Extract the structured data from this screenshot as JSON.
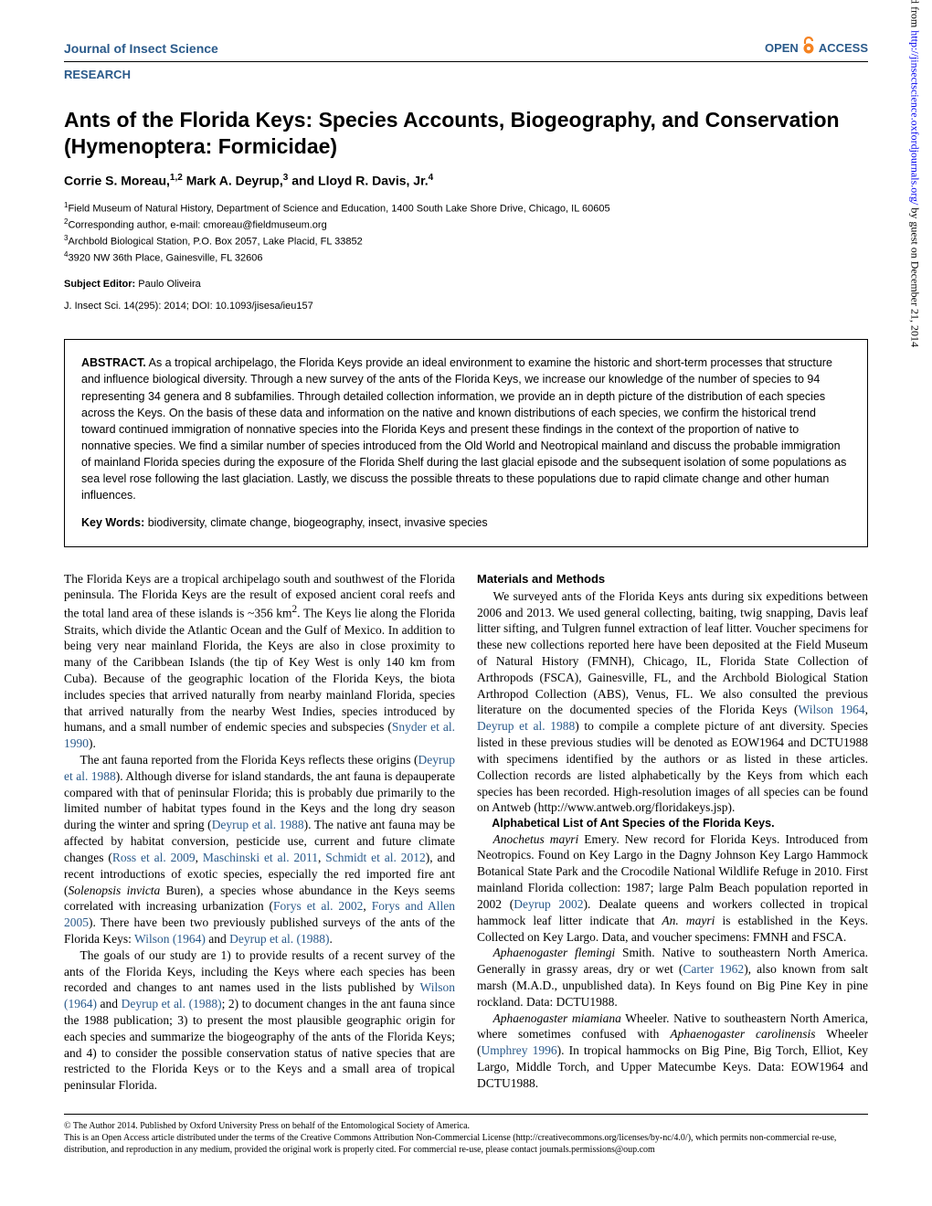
{
  "header": {
    "journal": "Journal of Insect Science",
    "open": "OPEN",
    "access": "ACCESS",
    "section": "RESEARCH"
  },
  "title": "Ants of the Florida Keys: Species Accounts, Biogeography, and Conservation (Hymenoptera: Formicidae)",
  "authors_html": "Corrie S. Moreau,<sup>1,2</sup> Mark A. Deyrup,<sup>3</sup> and Lloyd R. Davis, Jr.<sup>4</sup>",
  "affiliations": [
    "<sup>1</sup>Field Museum of Natural History, Department of Science and Education, 1400 South Lake Shore Drive, Chicago, IL 60605",
    "<sup>2</sup>Corresponding author, e-mail: cmoreau@fieldmuseum.org",
    "<sup>3</sup>Archbold Biological Station, P.O. Box 2057, Lake Placid, FL 33852",
    "<sup>4</sup>3920 NW 36th Place, Gainesville, FL 32606"
  ],
  "subject_editor_label": "Subject Editor:",
  "subject_editor": " Paulo Oliveira",
  "citation": "J. Insect Sci. 14(295): 2014; DOI: 10.1093/jisesa/ieu157",
  "abstract": {
    "label": "ABSTRACT.",
    "text": " As a tropical archipelago, the Florida Keys provide an ideal environment to examine the historic and short-term processes that structure and influence biological diversity. Through a new survey of the ants of the Florida Keys, we increase our knowledge of the number of species to 94 representing 34 genera and 8 subfamilies. Through detailed collection information, we provide an in depth picture of the distribution of each species across the Keys. On the basis of these data and information on the native and known distributions of each species, we confirm the historical trend toward continued immigration of nonnative species into the Florida Keys and present these findings in the context of the proportion of native to nonnative species. We find a similar number of species introduced from the Old World and Neotropical mainland and discuss the probable immigration of mainland Florida species during the exposure of the Florida Shelf during the last glacial episode and the subsequent isolation of some populations as sea level rose following the last glaciation. Lastly, we discuss the possible threats to these populations due to rapid climate change and other human influences."
  },
  "keywords": {
    "label": "Key Words:",
    "text": " biodiversity, climate change, biogeography, insect, invasive species"
  },
  "body": {
    "left": [
      "The Florida Keys are a tropical archipelago south and southwest of the Florida peninsula. The Florida Keys are the result of exposed ancient coral reefs and the total land area of these islands is ~356 km<sup>2</sup>. The Keys lie along the Florida Straits, which divide the Atlantic Ocean and the Gulf of Mexico. In addition to being very near mainland Florida, the Keys are also in close proximity to many of the Caribbean Islands (the tip of Key West is only 140 km from Cuba). Because of the geographic location of the Florida Keys, the biota includes species that arrived naturally from nearby mainland Florida, species that arrived naturally from the nearby West Indies, species introduced by humans, and a small number of endemic species and subspecies (<span class=\"link\">Snyder et al. 1990</span>).",
      "The ant fauna reported from the Florida Keys reflects these origins (<span class=\"link\">Deyrup et al. 1988</span>). Although diverse for island standards, the ant fauna is depauperate compared with that of peninsular Florida; this is probably due primarily to the limited number of habitat types found in the Keys and the long dry season during the winter and spring (<span class=\"link\">Deyrup et al. 1988</span>). The native ant fauna may be affected by habitat conversion, pesticide use, current and future climate changes (<span class=\"link\">Ross et al. 2009</span>, <span class=\"link\">Maschinski et al. 2011</span>, <span class=\"link\">Schmidt et al. 2012</span>), and recent introductions of exotic species, especially the red imported fire ant (<span class=\"italic\">Solenopsis invicta</span> Buren), a species whose abundance in the Keys seems correlated with increasing urbanization (<span class=\"link\">Forys et al. 2002</span>, <span class=\"link\">Forys and Allen 2005</span>). There have been two previously published surveys of the ants of the Florida Keys: <span class=\"link\">Wilson (1964)</span> and <span class=\"link\">Deyrup et al. (1988)</span>.",
      "The goals of our study are 1) to provide results of a recent survey of the ants of the Florida Keys, including the Keys where each species has been recorded and changes to ant names used in the lists published by <span class=\"link\">Wilson (1964)</span> and <span class=\"link\">Deyrup et al. (1988)</span>; 2) to document changes in the ant fauna since the 1988 publication; 3) to present the most plausible geographic origin for each species and summarize the biogeography of the ants of the Florida Keys; and 4) to consider the possible conservation status of native species that are restricted to the Florida Keys or to the Keys and a small area of tropical peninsular Florida."
    ],
    "right_head": "Materials and Methods",
    "right": [
      "We surveyed ants of the Florida Keys ants during six expeditions between 2006 and 2013. We used general collecting, baiting, twig snapping, Davis leaf litter sifting, and Tulgren funnel extraction of leaf litter. Voucher specimens for these new collections reported here have been deposited at the Field Museum of Natural History (FMNH), Chicago, IL, Florida State Collection of Arthropods (FSCA), Gainesville, FL, and the Archbold Biological Station Arthropod Collection (ABS), Venus, FL. We also consulted the previous literature on the documented species of the Florida Keys (<span class=\"link\">Wilson 1964</span>, <span class=\"link\">Deyrup et al. 1988</span>) to compile a complete picture of ant diversity. Species listed in these previous studies will be denoted as EOW1964 and DCTU1988 with specimens identified by the authors or as listed in these articles. Collection records are listed alphabetically by the Keys from which each species has been recorded. High-resolution images of all species can be found on Antweb (http://www.antweb.org/floridakeys.jsp).",
      "<span class=\"italic\">Anochetus mayri</span> Emery. New record for Florida Keys. Introduced from Neotropics. Found on Key Largo in the Dagny Johnson Key Largo Hammock Botanical State Park and the Crocodile National Wildlife Refuge in 2010. First mainland Florida collection: 1987; large Palm Beach population reported in 2002 (<span class=\"link\">Deyrup 2002</span>). Dealate queens and workers collected in tropical hammock leaf litter indicate that <span class=\"italic\">An. mayri</span> is established in the Keys. Collected on Key Largo. Data, and voucher specimens: FMNH and FSCA.",
      "<span class=\"italic\">Aphaenogaster flemingi</span> Smith. Native to southeastern North America. Generally in grassy areas, dry or wet (<span class=\"link\">Carter 1962</span>), also known from salt marsh (M.A.D., unpublished data). In Keys found on Big Pine Key in pine rockland. Data: DCTU1988.",
      "<span class=\"italic\">Aphaenogaster miamiana</span> Wheeler. Native to southeastern North America, where sometimes confused with <span class=\"italic\">Aphaenogaster carolinensis</span> Wheeler (<span class=\"link\">Umphrey 1996</span>). In tropical hammocks on Big Pine, Big Torch, Elliot, Key Largo, Middle Torch, and Upper Matecumbe Keys. Data: EOW1964 and DCTU1988."
    ],
    "subsection": "Alphabetical List of Ant Species of the Florida Keys."
  },
  "footer": {
    "copyright": "© The Author 2014. Published by Oxford University Press on behalf of the Entomological Society of America.",
    "license": "This is an Open Access article distributed under the terms of the Creative Commons Attribution Non-Commercial License (http://creativecommons.org/licenses/by-nc/4.0/), which permits non-commercial re-use, distribution, and reproduction in any medium, provided the original work is properly cited. For commercial re-use, please contact journals.permissions@oup.com"
  },
  "side": {
    "pre": "Downloaded from ",
    "url": "http://jinsectscience.oxfordjournals.org/",
    "post": " by guest on December 21, 2014"
  },
  "colors": {
    "accent": "#2a5a8a",
    "oa_orange": "#f58220",
    "text": "#000000",
    "background": "#ffffff",
    "link_blue": "#0000ee"
  }
}
